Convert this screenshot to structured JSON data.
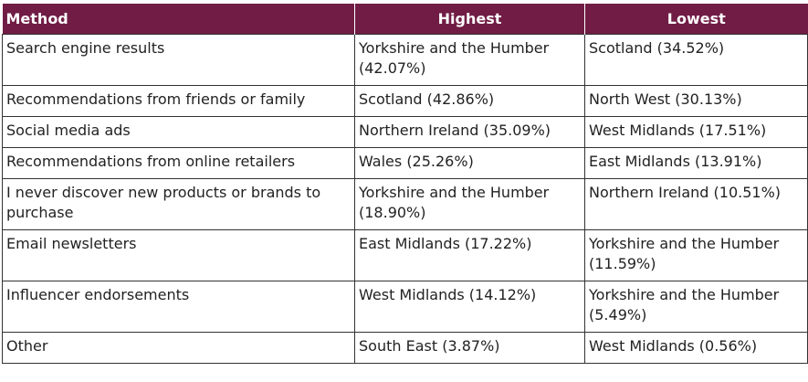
{
  "table": {
    "header": [
      "Method",
      "Highest",
      "Lowest"
    ],
    "rows": [
      [
        "Search engine results",
        "Yorkshire and the Humber (42.07%)",
        "Scotland (34.52%)"
      ],
      [
        "Recommendations from friends or family",
        "Scotland (42.86%)",
        "North West (30.13%)"
      ],
      [
        "Social media ads",
        "Northern Ireland (35.09%)",
        "West Midlands (17.51%)"
      ],
      [
        "Recommendations from online retailers",
        "Wales (25.26%)",
        "East Midlands (13.91%)"
      ],
      [
        "I never discover new products or brands to purchase",
        "Yorkshire and the Humber (18.90%)",
        "Northern Ireland (10.51%)"
      ],
      [
        "Email newsletters",
        "East Midlands (17.22%)",
        "Yorkshire and the Humber (11.59%)"
      ],
      [
        "Influencer endorsements",
        "West Midlands (14.12%)",
        "Yorkshire and the Humber (5.49%)"
      ],
      [
        "Other",
        "South East (3.87%)",
        "West Midlands (0.56%)"
      ]
    ]
  }
}
